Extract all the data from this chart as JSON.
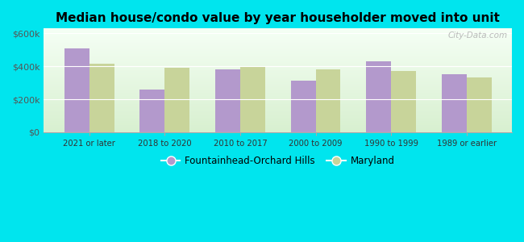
{
  "title": "Median house/condo value by year householder moved into unit",
  "categories": [
    "2021 or later",
    "2018 to 2020",
    "2010 to 2017",
    "2000 to 2009",
    "1990 to 1999",
    "1989 or earlier"
  ],
  "fountainhead_values": [
    510000,
    260000,
    380000,
    315000,
    430000,
    350000
  ],
  "maryland_values": [
    415000,
    390000,
    395000,
    380000,
    370000,
    335000
  ],
  "fountainhead_color": "#b399cc",
  "maryland_color": "#c8d49a",
  "background_outer": "#00e5ee",
  "background_inner_top": "#f5fff5",
  "background_inner_bottom": "#d8f0d0",
  "ylabel_ticks": [
    "$0",
    "$200k",
    "$400k",
    "$600k"
  ],
  "ytick_values": [
    0,
    200000,
    400000,
    600000
  ],
  "ylim": [
    0,
    630000
  ],
  "legend_label_1": "Fountainhead-Orchard Hills",
  "legend_label_2": "Maryland",
  "watermark": "City-Data.com"
}
